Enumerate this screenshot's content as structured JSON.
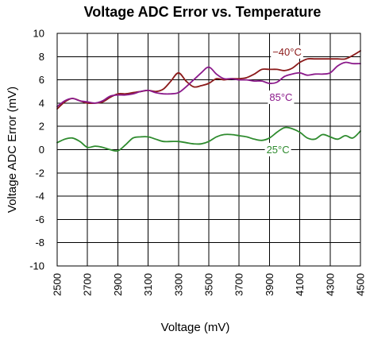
{
  "chart_data": {
    "type": "line",
    "title": "Voltage ADC Error vs. Temperature",
    "xlabel": "Voltage (mV)",
    "ylabel": "Voltage ADC Error (mV)",
    "xlim": [
      2500,
      4500
    ],
    "ylim": [
      -10,
      10
    ],
    "x_ticks": [
      2500,
      2700,
      2900,
      3100,
      3300,
      3500,
      3700,
      3900,
      4100,
      4300,
      4500
    ],
    "x_tick_labels": [
      "2500",
      "2700",
      "2900",
      "3100",
      "3300",
      "3500",
      "3700",
      "3900",
      "4100",
      "4300",
      "4500"
    ],
    "y_ticks": [
      -10,
      -8,
      -6,
      -4,
      -2,
      0,
      2,
      4,
      6,
      8,
      10
    ],
    "y_tick_labels": [
      "-10",
      "-8",
      "-6",
      "-4",
      "-2",
      "0",
      "2",
      "4",
      "6",
      "8",
      "10"
    ],
    "grid": true,
    "series": [
      {
        "name": "−40°C",
        "color": "#8B1A1A",
        "x": [
          2500,
          2550,
          2600,
          2650,
          2700,
          2750,
          2800,
          2850,
          2900,
          2950,
          3000,
          3050,
          3100,
          3150,
          3200,
          3250,
          3300,
          3350,
          3400,
          3450,
          3500,
          3550,
          3600,
          3650,
          3700,
          3750,
          3800,
          3850,
          3900,
          3950,
          4000,
          4050,
          4100,
          4150,
          4200,
          4250,
          4300,
          4350,
          4400,
          4450,
          4500
        ],
        "y": [
          3.5,
          4.1,
          4.4,
          4.2,
          4.0,
          4.0,
          4.1,
          4.5,
          4.8,
          4.8,
          4.9,
          5.0,
          5.1,
          5.0,
          5.2,
          5.9,
          6.6,
          5.9,
          5.4,
          5.5,
          5.7,
          6.1,
          6.0,
          6.1,
          6.1,
          6.2,
          6.5,
          6.9,
          6.9,
          6.9,
          6.8,
          7.0,
          7.5,
          7.8,
          7.8,
          7.8,
          7.8,
          7.8,
          7.8,
          8.1,
          8.5
        ]
      },
      {
        "name": "85°C",
        "color": "#8B1A8B",
        "x": [
          2500,
          2550,
          2600,
          2650,
          2700,
          2750,
          2800,
          2850,
          2900,
          2950,
          3000,
          3050,
          3100,
          3150,
          3200,
          3250,
          3300,
          3350,
          3400,
          3450,
          3500,
          3550,
          3600,
          3650,
          3700,
          3750,
          3800,
          3850,
          3900,
          3950,
          4000,
          4050,
          4100,
          4150,
          4200,
          4250,
          4300,
          4350,
          4400,
          4450,
          4500
        ],
        "y": [
          3.7,
          4.2,
          4.4,
          4.2,
          4.1,
          4.0,
          4.2,
          4.6,
          4.7,
          4.7,
          4.8,
          5.0,
          5.1,
          4.9,
          4.8,
          4.8,
          4.9,
          5.4,
          6.0,
          6.6,
          7.1,
          6.5,
          6.1,
          6.1,
          6.0,
          6.0,
          5.9,
          5.9,
          5.7,
          5.8,
          6.3,
          6.5,
          6.6,
          6.4,
          6.5,
          6.5,
          6.6,
          7.2,
          7.5,
          7.4,
          7.4
        ]
      },
      {
        "name": "25°C",
        "color": "#2E8B2E",
        "x": [
          2500,
          2550,
          2600,
          2650,
          2700,
          2750,
          2800,
          2850,
          2900,
          2950,
          3000,
          3050,
          3100,
          3150,
          3200,
          3250,
          3300,
          3350,
          3400,
          3450,
          3500,
          3550,
          3600,
          3650,
          3700,
          3750,
          3800,
          3850,
          3900,
          3950,
          4000,
          4050,
          4100,
          4150,
          4200,
          4250,
          4300,
          4350,
          4400,
          4450,
          4500
        ],
        "y": [
          0.6,
          0.9,
          1.0,
          0.7,
          0.2,
          0.3,
          0.2,
          0.0,
          -0.1,
          0.4,
          1.0,
          1.1,
          1.1,
          0.9,
          0.7,
          0.7,
          0.7,
          0.6,
          0.5,
          0.5,
          0.7,
          1.1,
          1.3,
          1.3,
          1.2,
          1.1,
          0.9,
          0.8,
          1.0,
          1.5,
          1.9,
          1.8,
          1.5,
          1.0,
          0.9,
          1.3,
          1.1,
          0.9,
          1.2,
          1.0,
          1.6
        ]
      }
    ],
    "annotations": [
      {
        "text": "−40°C",
        "series": 0,
        "x": 3920,
        "y": 8.1
      },
      {
        "text": "85°C",
        "series": 1,
        "x": 3900,
        "y": 4.2
      },
      {
        "text": "25°C",
        "series": 2,
        "x": 3880,
        "y": -0.3
      }
    ]
  }
}
